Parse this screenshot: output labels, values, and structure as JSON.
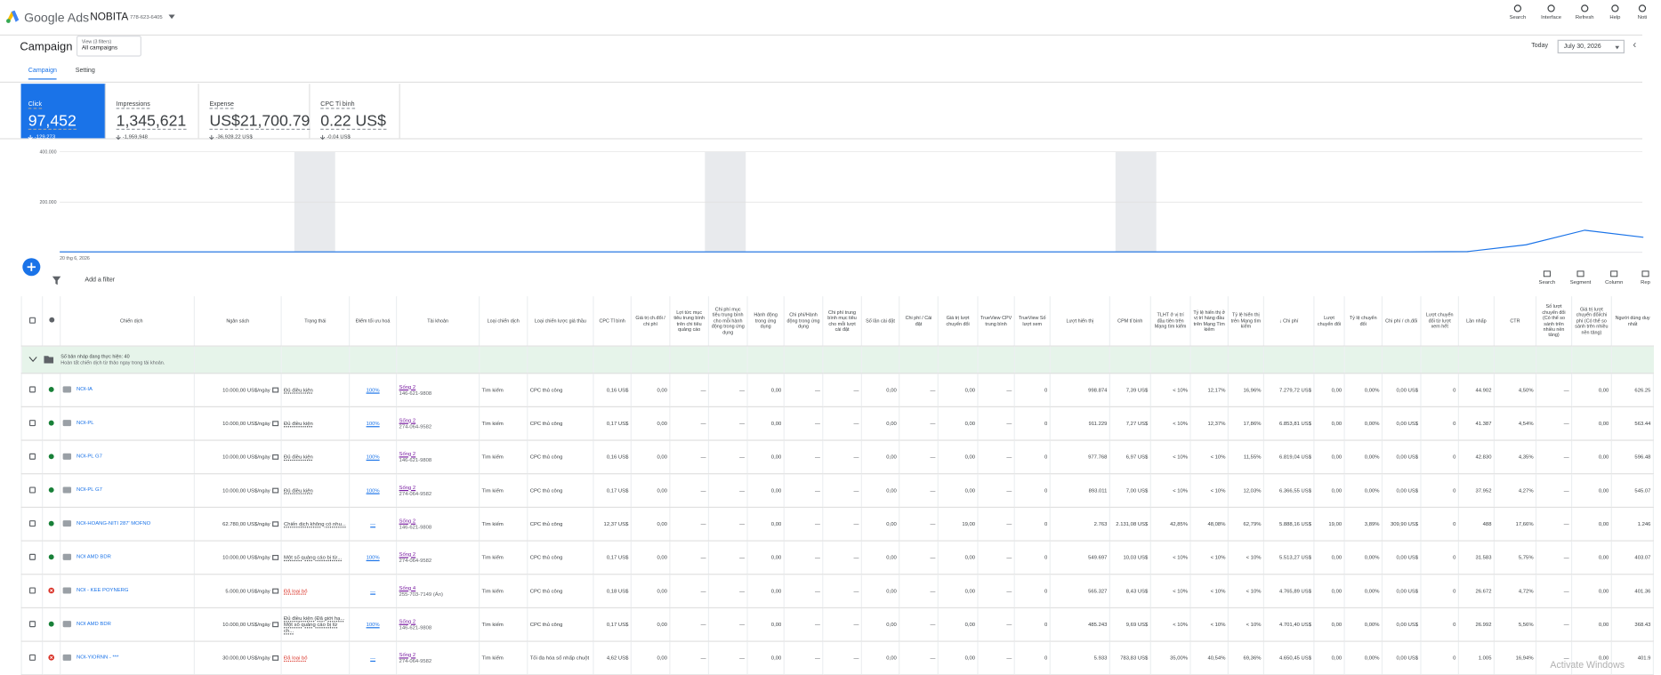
{
  "header": {
    "brand": "Google Ads",
    "account": "NOBITA",
    "account_id": "778-623-6405",
    "actions": [
      "Search",
      "Interface",
      "Refresh",
      "Help",
      "Noti"
    ]
  },
  "page": {
    "title": "Campaign",
    "view_label": "View (3 filters)",
    "view_value": "All campaigns",
    "date_label": "Today",
    "date": "July 30, 2026",
    "tabs": [
      "Campaign",
      "Setting"
    ]
  },
  "metrics": [
    {
      "label": "Click",
      "value": "97,452",
      "change": "-129,273"
    },
    {
      "label": "Impressions",
      "value": "1,345,621",
      "change": "-1,959,948"
    },
    {
      "label": "Expense",
      "value": "US$21,700.79",
      "change": "-36,928.22 US$"
    },
    {
      "label": "CPC Tỉ bình",
      "value": "0.22 US$",
      "change": "-0.04 US$"
    }
  ],
  "chart": {
    "ylim": [
      0,
      400000
    ],
    "yticks": [
      {
        "value": 400000,
        "label": "400.000"
      },
      {
        "value": 200000,
        "label": "200.000"
      }
    ],
    "x_label": "20 thg 6, 2026",
    "color": "#1a73e8",
    "values": [
      2000,
      2000,
      2000,
      2000,
      2000,
      2000,
      2000,
      2000,
      2000,
      2000,
      2000,
      2000,
      2000,
      2000,
      2000,
      2000,
      2000,
      2000,
      2000,
      2000,
      2000,
      2000,
      2000,
      2000,
      3000,
      30000,
      88000,
      60000
    ]
  },
  "toolbar": {
    "filter": "Add a filter",
    "tools": [
      "Search",
      "Segment",
      "Column",
      "Rep"
    ]
  },
  "table": {
    "columns": [
      "Chiến dịch",
      "Ngân sách",
      "Trạng thái",
      "Điểm tối ưu hoá",
      "Tài khoản",
      "Loại chiến dịch",
      "Loại chiến lược giá thầu",
      "CPC Tỉ bình",
      "Giá trị ch.đổi / chi phí",
      "Lợi tức mục tiêu trung bình trên chi tiêu quảng cáo",
      "Chi phí mục tiêu trung bình cho mỗi hành động trong ứng dụng",
      "Hành động trong ứng dụng",
      "Chi phí/Hành động trong ứng dụng",
      "Chi phí trung bình mục tiêu cho mỗi lượt cài đặt",
      "Số lần cài đặt",
      "Chi phí / Cài đặt",
      "Giá trị lượt chuyển đổi",
      "TrueView CPV trung bình",
      "TrueView Số lượt xem",
      "Lượt hiển thị",
      "CPM tỉ bình",
      "TLHT ở vị trí đầu tiên trên Mạng tìm kiếm",
      "Tỷ lệ hiển thị ở vị trí hàng đầu trên Mạng Tìm kiếm",
      "Tỷ lệ hiển thị trên Mạng tìm kiếm",
      "↓ Chi phí",
      "Lượt chuyển đổi",
      "Tỷ lệ chuyển đổi",
      "Chi phí / ch.đổi",
      "Lượt chuyển đổi từ lượt xem hết",
      "Lần nhấp",
      "CTR",
      "Số lượt chuyển đổi (Có thể so sánh trên nhiều nền tảng)",
      "Giá trị lượt chuyển đổi/chi phí (Có thể so sánh trên nhiều nền tảng)",
      "Người dùng duy nhất"
    ],
    "draft": {
      "title": "Số bản nháp đang thực hiện: 40",
      "text": "Hoàn tất chiến dịch từ thảo ngay trong tài khoản."
    },
    "rows": [
      {
        "status": "enabled",
        "cells": [
          "NOI-IA",
          "10.000,00 US$/ngày",
          "Đủ điều kiện",
          "100%",
          [
            "Sống 2",
            "146-621-9808"
          ],
          "Tìm kiếm",
          "CPC thủ công",
          "0,16 US$",
          "0,00",
          "—",
          "—",
          "0,00",
          "—",
          "—",
          "0,00",
          "—",
          "0,00",
          "—",
          "0",
          "998.874",
          "7,39 US$",
          "< 10%",
          "12,17%",
          "16,96%",
          "7.279,72 US$",
          "0,00",
          "0,00%",
          "0,00 US$",
          "0",
          "44.902",
          "4,50%",
          "—",
          "0,00",
          "626.25"
        ]
      },
      {
        "status": "enabled",
        "cells": [
          "NOI-PL",
          "10.000,00 US$/ngày",
          "Đủ điều kiện",
          "100%",
          [
            "Sống 2",
            "274-064-9582"
          ],
          "Tìm kiếm",
          "CPC thủ công",
          "0,17 US$",
          "0,00",
          "—",
          "—",
          "0,00",
          "—",
          "—",
          "0,00",
          "—",
          "0,00",
          "—",
          "0",
          "911.229",
          "7,27 US$",
          "< 10%",
          "12,37%",
          "17,86%",
          "6.853,81 US$",
          "0,00",
          "0,00%",
          "0,00 US$",
          "0",
          "41.387",
          "4,54%",
          "—",
          "0,00",
          "563.44"
        ]
      },
      {
        "status": "enabled",
        "cells": [
          "NOI-PL G7",
          "10.000,00 US$/ngày",
          "Đủ điều kiện",
          "100%",
          [
            "Sống 2",
            "146-621-9808"
          ],
          "Tìm kiếm",
          "CPC thủ công",
          "0,16 US$",
          "0,00",
          "—",
          "—",
          "0,00",
          "—",
          "—",
          "0,00",
          "—",
          "0,00",
          "—",
          "0",
          "977.768",
          "6,97 US$",
          "< 10%",
          "< 10%",
          "11,55%",
          "6.819,04 US$",
          "0,00",
          "0,00%",
          "0,00 US$",
          "0",
          "42.830",
          "4,35%",
          "—",
          "0,00",
          "596.48"
        ]
      },
      {
        "status": "enabled",
        "cells": [
          "NOI-PL G7",
          "10.000,00 US$/ngày",
          "Đủ điều kiện",
          "100%",
          [
            "Sống 2",
            "274-064-9582"
          ],
          "Tìm kiếm",
          "CPC thủ công",
          "0,17 US$",
          "0,00",
          "—",
          "—",
          "0,00",
          "—",
          "—",
          "0,00",
          "—",
          "0,00",
          "—",
          "0",
          "893.011",
          "7,00 US$",
          "< 10%",
          "< 10%",
          "12,03%",
          "6.366,55 US$",
          "0,00",
          "0,00%",
          "0,00 US$",
          "0",
          "37.952",
          "4,27%",
          "—",
          "0,00",
          "545.07"
        ]
      },
      {
        "status": "enabled",
        "cells": [
          "NOI-HOANG-NITI 287' MOFNO",
          "62.780,00 US$/ngày",
          "Chiến dịch không có nhu...",
          "—",
          [
            "Sống 2",
            "146-621-9808"
          ],
          "Tìm kiếm",
          "CPC thủ công",
          "12,37 US$",
          "0,00",
          "—",
          "—",
          "0,00",
          "—",
          "—",
          "0,00",
          "—",
          "19,00",
          "—",
          "0",
          "2.763",
          "2.131,08 US$",
          "42,85%",
          "48,08%",
          "62,79%",
          "5.888,16 US$",
          "19,00",
          "3,89%",
          "309,90 US$",
          "0",
          "488",
          "17,66%",
          "—",
          "0,00",
          "1.246"
        ]
      },
      {
        "status": "enabled",
        "cells": [
          "NOI AMD BDR",
          "10.000,00 US$/ngày",
          "Một số quảng cáo bị từ...",
          "100%",
          [
            "Sống 2",
            "274-064-9582"
          ],
          "Tìm kiếm",
          "CPC thủ công",
          "0,17 US$",
          "0,00",
          "—",
          "—",
          "0,00",
          "—",
          "—",
          "0,00",
          "—",
          "0,00",
          "—",
          "0",
          "549.697",
          "10,03 US$",
          "< 10%",
          "< 10%",
          "< 10%",
          "5.513,27 US$",
          "0,00",
          "0,00%",
          "0,00 US$",
          "0",
          "31.583",
          "5,75%",
          "—",
          "0,00",
          "403.07"
        ]
      },
      {
        "status": "removed",
        "cells": [
          "NOI - KEE POYNERG",
          "5.000,00 US$/ngày",
          "Đã loại bỏ",
          "—",
          [
            "Sống 4",
            "255-703-7149 (Ẩn)"
          ],
          "Tìm kiếm",
          "CPC thủ công",
          "0,18 US$",
          "0,00",
          "—",
          "—",
          "0,00",
          "—",
          "—",
          "0,00",
          "—",
          "0,00",
          "—",
          "0",
          "565.327",
          "8,43 US$",
          "< 10%",
          "< 10%",
          "< 10%",
          "4.765,89 US$",
          "0,00",
          "0,00%",
          "0,00 US$",
          "0",
          "26.672",
          "4,72%",
          "—",
          "0,00",
          "401.36"
        ]
      },
      {
        "status": "enabled",
        "cells": [
          "NOI AMD BDR",
          "10.000,00 US$/ngày",
          [
            "Đủ điều kiện (Đã giới hạ...",
            "Một số quảng cáo bị từ ch..."
          ],
          "100%",
          [
            "Sống 2",
            "146-621-9808"
          ],
          "Tìm kiếm",
          "CPC thủ công",
          "0,17 US$",
          "0,00",
          "—",
          "—",
          "0,00",
          "—",
          "—",
          "0,00",
          "—",
          "0,00",
          "—",
          "0",
          "485.243",
          "9,69 US$",
          "< 10%",
          "< 10%",
          "< 10%",
          "4.701,40 US$",
          "0,00",
          "0,00%",
          "0,00 US$",
          "0",
          "26.992",
          "5,56%",
          "—",
          "0,00",
          "368.43"
        ]
      },
      {
        "status": "removed",
        "cells": [
          "NOI-YIORNN - ***",
          "30.000,00 US$/ngày",
          "Đã loại bỏ",
          "—",
          [
            "Sống 2",
            "274-064-9582"
          ],
          "Tìm kiếm",
          "Tối đa hóa số nhấp chuột",
          "4,62 US$",
          "0,00",
          "—",
          "—",
          "0,00",
          "—",
          "—",
          "0,00",
          "—",
          "0,00",
          "—",
          "0",
          "5.933",
          "783,83 US$",
          "35,00%",
          "40,54%",
          "69,36%",
          "4.650,45 US$",
          "0,00",
          "0,00%",
          "0,00 US$",
          "0",
          "1.005",
          "16,94%",
          "—",
          "0,00",
          "401.9"
        ]
      }
    ]
  },
  "watermark": {
    "title": "Activate Windows"
  }
}
